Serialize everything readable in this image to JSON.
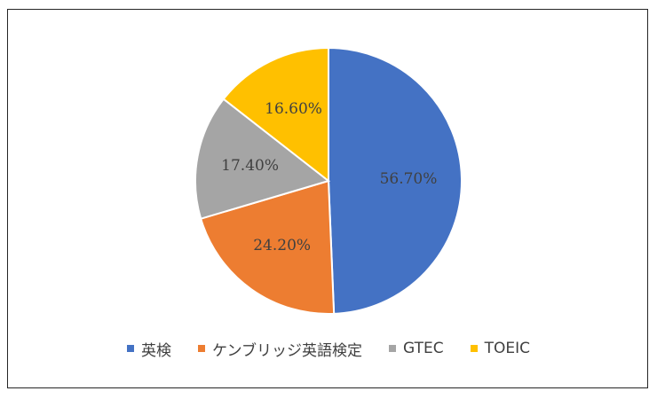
{
  "chart_data": {
    "type": "pie",
    "title": "",
    "start_angle_deg": 0,
    "direction": "clockwise",
    "legend_position": "bottom",
    "slices": [
      {
        "label": "英検",
        "value": 56.7,
        "value_label": "56.70%",
        "color": "#4472C4"
      },
      {
        "label": "ケンブリッジ英語検定",
        "value": 24.2,
        "value_label": "24.20%",
        "color": "#ED7D31"
      },
      {
        "label": "GTEC",
        "value": 17.4,
        "value_label": "17.40%",
        "color": "#A5A5A5"
      },
      {
        "label": "TOEIC",
        "value": 16.6,
        "value_label": "16.60%",
        "color": "#FFC000"
      }
    ]
  }
}
